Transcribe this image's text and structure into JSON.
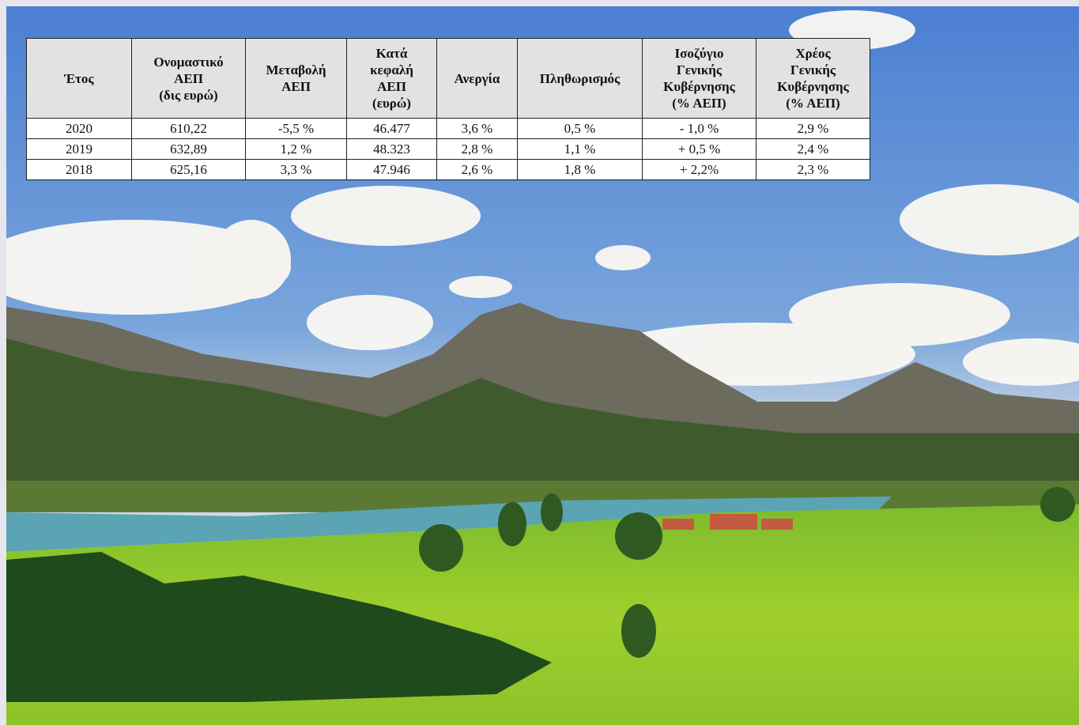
{
  "table": {
    "headers": [
      [
        "Έτος"
      ],
      [
        "Ονομαστικό",
        "ΑΕΠ",
        "(δις ευρώ)"
      ],
      [
        "Μεταβολή",
        "ΑΕΠ"
      ],
      [
        "Κατά",
        "κεφαλή",
        "ΑΕΠ",
        "(ευρώ)"
      ],
      [
        "Ανεργία"
      ],
      [
        "Πληθωρισμός"
      ],
      [
        "Ισοζύγιο",
        "Γενικής",
        "Κυβέρνησης",
        "(% ΑΕΠ)"
      ],
      [
        "Χρέος",
        "Γενικής",
        "Κυβέρνησης",
        "(% ΑΕΠ)"
      ]
    ],
    "rows": [
      [
        "2020",
        "610,22",
        "-5,5 %",
        "46.477",
        "3,6 %",
        "0,5 %",
        "- 1,0 %",
        "2,9 %"
      ],
      [
        "2019",
        "632,89",
        "1,2 %",
        "48.323",
        "2,8 %",
        "1,1 %",
        "+ 0,5 %",
        "2,4 %"
      ],
      [
        "2018",
        "625,16",
        "3,3 %",
        "47.946",
        "2,6 %",
        "1,8 %",
        "+ 2,2%",
        "2,3 %"
      ]
    ]
  }
}
